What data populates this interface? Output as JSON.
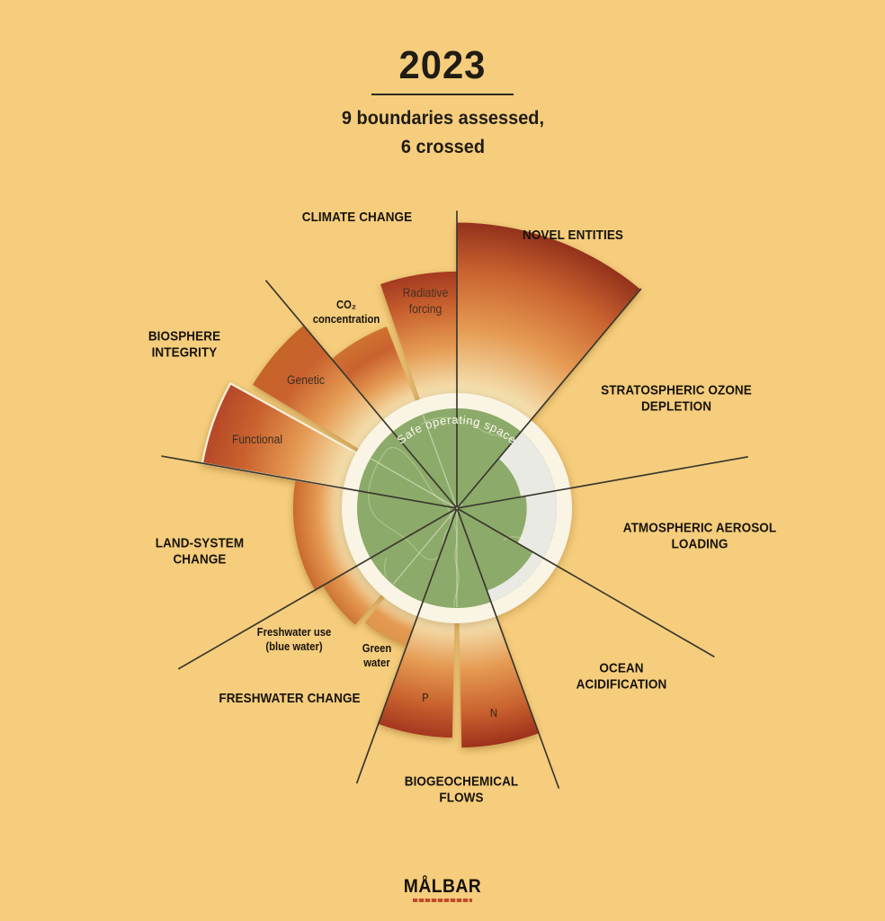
{
  "title": "2023",
  "subtitle": "9 boundaries assessed,\n6 crossed",
  "center_label": "Safe operating space",
  "logo": {
    "name": "MÅLBAR",
    "tagline_color": "#C04A2B"
  },
  "palette": {
    "background": "#F5CD7C",
    "green": "#8CAA6A",
    "continent": "#AEC48D",
    "ring": "#FAF4E4",
    "safe_white": "#E9EAE3",
    "spoke": "#3B392E",
    "wedge_inner": "#F6E6B6",
    "wedge_mid": "#E59A52",
    "wedge_deep": "#C9622F",
    "label": "#17130D",
    "center_text": "#FCF8EE",
    "logo_red": "#C04A2B"
  },
  "labels": {
    "climate_change": "CLIMATE CHANGE",
    "novel_entities": "NOVEL ENTITIES",
    "stratospheric_ozone": "STRATOSPHERIC OZONE\nDEPLETION",
    "aerosol_loading": "ATMOSPHERIC AEROSOL\nLOADING",
    "ocean_acidification": "OCEAN\nACIDIFICATION",
    "biogeochemical_flows": "BIOGEOCHEMICAL\nFLOWS",
    "freshwater_change": "FRESHWATER CHANGE",
    "land_system_change": "LAND-SYSTEM\nCHANGE",
    "biosphere_integrity": "BIOSPHERE\nINTEGRITY",
    "co2_concentration": "CO₂\nconcentration",
    "radiative_forcing": "Radiative\nforcing",
    "genetic": "Genetic",
    "functional": "Functional",
    "freshwater_use": "Freshwater use\n(blue water)",
    "green_water": "Green\nwater",
    "p": "P",
    "n": "N"
  },
  "chart_data": {
    "type": "polar-wedges",
    "title": "Planetary boundaries status 2023",
    "value_meaning": "radial extent relative to safe boundary circle (1.0 = boundary)",
    "rotation": "degrees clockwise from 12 o'clock",
    "boundary_radius": 1.0,
    "sectors": [
      {
        "name": "Novel entities",
        "status": "crossed",
        "wedges": [
          {
            "id": "novel",
            "label": "Novel entities",
            "a0": 0,
            "a1": 40,
            "value": 2.86,
            "color": "#93321C"
          }
        ]
      },
      {
        "name": "Stratospheric ozone depletion",
        "status": "safe",
        "wedges": [
          {
            "id": "ozone",
            "label": "Stratospheric ozone depletion",
            "a0": 40,
            "a1": 80,
            "value": 0.65
          }
        ]
      },
      {
        "name": "Atmospheric aerosol loading",
        "status": "safe",
        "wedges": [
          {
            "id": "aerosol",
            "label": "Atmospheric aerosol loading",
            "a0": 80,
            "a1": 120,
            "value": 0.7
          }
        ]
      },
      {
        "name": "Ocean acidification",
        "status": "safe",
        "wedges": [
          {
            "id": "ocean",
            "label": "Ocean acidification",
            "a0": 120,
            "a1": 160,
            "value": 0.88
          }
        ]
      },
      {
        "name": "Biogeochemical flows",
        "status": "crossed",
        "wedges": [
          {
            "id": "n",
            "label": "N",
            "a0": 160,
            "a1": 180,
            "value": 2.4,
            "color": "#9E311B",
            "gap": "end"
          },
          {
            "id": "p",
            "label": "P",
            "a0": 180,
            "a1": 200,
            "value": 2.3,
            "color": "#A5371F",
            "gap": "start"
          }
        ]
      },
      {
        "name": "Freshwater change",
        "status": "crossed",
        "wedges": [
          {
            "id": "green-water",
            "label": "Green water",
            "a0": 200,
            "a1": 220,
            "value": 1.47,
            "color": "#DD954C",
            "gap": "end"
          },
          {
            "id": "blue-water",
            "label": "Freshwater use (blue water)",
            "a0": 220,
            "a1": 240,
            "value": 1.55,
            "color": "#CD7533",
            "gap": "start"
          }
        ]
      },
      {
        "name": "Land-system change",
        "status": "crossed",
        "wedges": [
          {
            "id": "land",
            "label": "Land-system change",
            "a0": 240,
            "a1": 280,
            "value": 1.64,
            "color": "#CA6A2E"
          }
        ]
      },
      {
        "name": "Biosphere integrity",
        "status": "crossed",
        "wedges": [
          {
            "id": "functional",
            "label": "Functional",
            "a0": 280,
            "a1": 300,
            "value": 2.59,
            "color": "#B54827",
            "outline": true,
            "gap": "end"
          },
          {
            "id": "genetic",
            "label": "Genetic",
            "a0": 300,
            "a1": 320,
            "value": 2.39,
            "color": "#C66428",
            "gap": "start"
          }
        ]
      },
      {
        "name": "Climate change",
        "status": "crossed",
        "wedges": [
          {
            "id": "co2",
            "label": "CO₂ concentration",
            "a0": 320,
            "a1": 340,
            "value": 1.95,
            "color": "#CE722F",
            "gap": "end"
          },
          {
            "id": "radiative",
            "label": "Radiative forcing",
            "a0": 340,
            "a1": 360,
            "value": 2.37,
            "color": "#A53A20",
            "gap": "start"
          }
        ]
      }
    ],
    "subdividers_deg": [
      180,
      220,
      300,
      340
    ],
    "spokes_deg": [
      0,
      40,
      80,
      120,
      160,
      200,
      240,
      280,
      320
    ]
  }
}
